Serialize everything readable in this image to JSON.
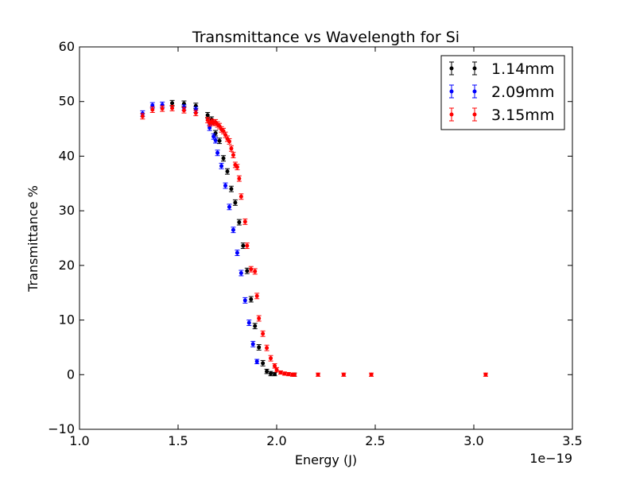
{
  "chart_data": {
    "type": "scatter",
    "title": "Transmittance vs Wavelength for Si",
    "xlabel": "Energy (J)",
    "ylabel": "Transmittance %",
    "x_offset_label": "1e−19",
    "xlim": [
      1.0,
      3.5
    ],
    "ylim": [
      -10,
      60
    ],
    "x_ticks": [
      1.0,
      1.5,
      2.0,
      2.5,
      3.0,
      3.5
    ],
    "x_tick_labels": [
      "1.0",
      "1.5",
      "2.0",
      "2.5",
      "3.0",
      "3.5"
    ],
    "y_ticks": [
      -10,
      0,
      10,
      20,
      30,
      40,
      50,
      60
    ],
    "y_tick_labels": [
      "−10",
      "0",
      "10",
      "20",
      "30",
      "40",
      "50",
      "60"
    ],
    "grid": false,
    "legend_position": "top-right",
    "error_bars": true,
    "series": [
      {
        "name": "1.14mm",
        "color": "#000000",
        "x": [
          1.47,
          1.53,
          1.59,
          1.65,
          1.67,
          1.69,
          1.71,
          1.73,
          1.75,
          1.77,
          1.79,
          1.81,
          1.83,
          1.85,
          1.87,
          1.89,
          1.91,
          1.93,
          1.95,
          1.97,
          1.99,
          2.09
        ],
        "y": [
          49.7,
          49.6,
          49.2,
          47.5,
          46.7,
          44.2,
          42.8,
          39.6,
          37.2,
          34.0,
          31.5,
          27.9,
          23.6,
          19.0,
          13.8,
          8.9,
          5.0,
          2.1,
          0.6,
          0.2,
          0.1,
          0.0
        ],
        "err": [
          0.5,
          0.5,
          0.5,
          0.5,
          0.5,
          0.5,
          0.5,
          0.5,
          0.5,
          0.5,
          0.5,
          0.5,
          0.5,
          0.5,
          0.5,
          0.5,
          0.5,
          0.5,
          0.4,
          0.4,
          0.3,
          0.3
        ]
      },
      {
        "name": "2.09mm",
        "color": "#0000ff",
        "x": [
          1.32,
          1.37,
          1.42,
          1.53,
          1.59,
          1.66,
          1.68,
          1.69,
          1.7,
          1.72,
          1.74,
          1.76,
          1.78,
          1.8,
          1.82,
          1.84,
          1.86,
          1.88,
          1.9
        ],
        "y": [
          47.8,
          49.3,
          49.4,
          48.9,
          48.5,
          45.2,
          43.6,
          42.9,
          40.6,
          38.2,
          34.6,
          30.7,
          26.5,
          22.3,
          18.6,
          13.6,
          9.5,
          5.6,
          2.4
        ],
        "err": [
          0.5,
          0.5,
          0.5,
          0.5,
          0.5,
          0.5,
          0.5,
          0.5,
          0.5,
          0.5,
          0.5,
          0.5,
          0.5,
          0.5,
          0.5,
          0.5,
          0.5,
          0.5,
          0.4
        ]
      },
      {
        "name": "3.15mm",
        "color": "#ff0000",
        "x": [
          1.32,
          1.37,
          1.42,
          1.47,
          1.53,
          1.59,
          1.65,
          1.66,
          1.67,
          1.68,
          1.69,
          1.7,
          1.71,
          1.72,
          1.73,
          1.74,
          1.75,
          1.76,
          1.77,
          1.78,
          1.79,
          1.8,
          1.81,
          1.82,
          1.84,
          1.85,
          1.87,
          1.89,
          1.9,
          1.91,
          1.93,
          1.95,
          1.97,
          1.99,
          2.0,
          2.02,
          2.04,
          2.06,
          2.08,
          2.09,
          2.21,
          2.34,
          2.48,
          3.06
        ],
        "y": [
          47.3,
          48.5,
          48.7,
          48.8,
          48.4,
          47.9,
          46.6,
          46.0,
          46.3,
          46.1,
          46.2,
          45.8,
          45.5,
          44.9,
          44.6,
          43.9,
          43.2,
          42.7,
          41.4,
          40.2,
          38.4,
          38.0,
          35.9,
          32.6,
          28.0,
          23.6,
          19.3,
          18.9,
          14.4,
          10.3,
          7.5,
          4.9,
          3.0,
          1.6,
          0.9,
          0.4,
          0.2,
          0.1,
          0.0,
          0.0,
          0.0,
          0.0,
          0.0,
          0.0
        ],
        "err": [
          0.5,
          0.5,
          0.5,
          0.5,
          0.5,
          0.5,
          0.5,
          0.5,
          0.5,
          0.5,
          0.5,
          0.5,
          0.5,
          0.5,
          0.5,
          0.5,
          0.5,
          0.5,
          0.5,
          0.5,
          0.5,
          0.5,
          0.5,
          0.5,
          0.5,
          0.5,
          0.5,
          0.5,
          0.5,
          0.5,
          0.5,
          0.5,
          0.5,
          0.4,
          0.4,
          0.3,
          0.3,
          0.3,
          0.3,
          0.3,
          0.3,
          0.3,
          0.3,
          0.3
        ]
      }
    ]
  }
}
